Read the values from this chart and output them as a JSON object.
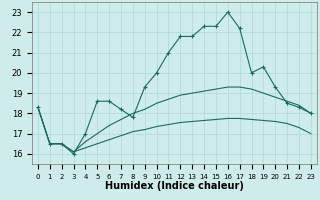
{
  "title": "",
  "xlabel": "Humidex (Indice chaleur)",
  "ylabel": "",
  "bg_color": "#ceecea",
  "grid_color": "#aed8d4",
  "line_color": "#1a6b5a",
  "x_main": [
    0,
    1,
    2,
    3,
    4,
    5,
    6,
    7,
    8,
    9,
    10,
    11,
    12,
    13,
    14,
    15,
    16,
    17,
    18,
    19,
    20,
    21,
    22,
    23
  ],
  "y_main": [
    18.3,
    16.5,
    16.5,
    16.0,
    17.0,
    18.6,
    18.6,
    18.2,
    17.8,
    19.3,
    20.0,
    21.0,
    21.8,
    21.8,
    22.3,
    22.3,
    23.0,
    22.2,
    20.0,
    20.3,
    19.3,
    18.5,
    18.3,
    18.0
  ],
  "x_smooth": [
    0,
    1,
    2,
    3,
    4,
    5,
    6,
    7,
    8,
    9,
    10,
    11,
    12,
    13,
    14,
    15,
    16,
    17,
    18,
    19,
    20,
    21,
    22,
    23
  ],
  "y_smooth1": [
    18.3,
    16.5,
    16.5,
    16.1,
    16.6,
    17.0,
    17.4,
    17.7,
    18.0,
    18.2,
    18.5,
    18.7,
    18.9,
    19.0,
    19.1,
    19.2,
    19.3,
    19.3,
    19.2,
    19.0,
    18.8,
    18.6,
    18.4,
    18.0
  ],
  "y_smooth2": [
    18.3,
    16.5,
    16.5,
    16.1,
    16.3,
    16.5,
    16.7,
    16.9,
    17.1,
    17.2,
    17.35,
    17.45,
    17.55,
    17.6,
    17.65,
    17.7,
    17.75,
    17.75,
    17.7,
    17.65,
    17.6,
    17.5,
    17.3,
    17.0
  ],
  "ylim": [
    15.5,
    23.5
  ],
  "xlim": [
    -0.5,
    23.5
  ],
  "yticks": [
    16,
    17,
    18,
    19,
    20,
    21,
    22,
    23
  ],
  "xticks": [
    0,
    1,
    2,
    3,
    4,
    5,
    6,
    7,
    8,
    9,
    10,
    11,
    12,
    13,
    14,
    15,
    16,
    17,
    18,
    19,
    20,
    21,
    22,
    23
  ],
  "marker": "+",
  "markersize": 3.5,
  "linewidth": 0.8,
  "font_size_ticks_x": 5.0,
  "font_size_ticks_y": 6.0,
  "font_size_label": 7.0
}
